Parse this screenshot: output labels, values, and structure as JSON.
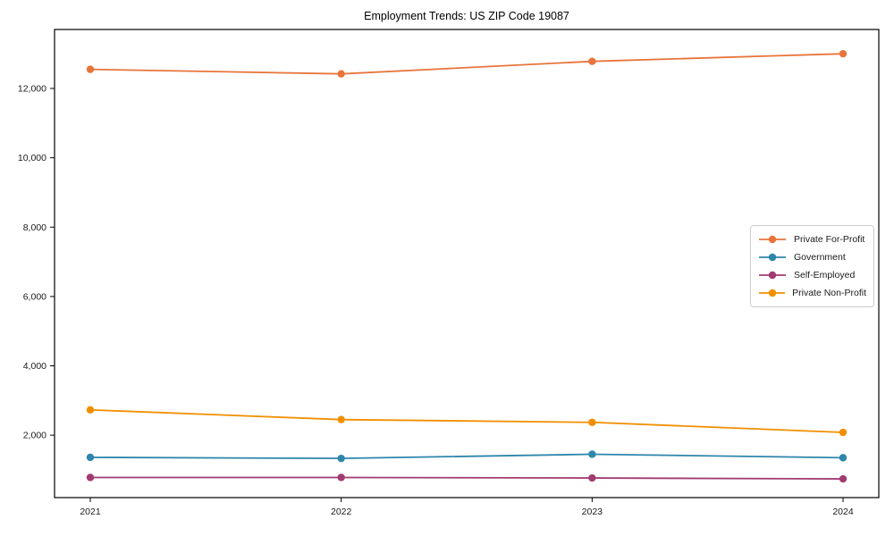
{
  "chart_data": {
    "type": "line",
    "title": "Employment Trends: US ZIP Code 19087",
    "xlabel": "",
    "ylabel": "",
    "categories": [
      "2021",
      "2022",
      "2023",
      "2024"
    ],
    "series": [
      {
        "name": "Private For-Profit",
        "color": "#e8743b",
        "values": [
          12550,
          12420,
          12780,
          13000
        ]
      },
      {
        "name": "Government",
        "color": "#2e86ab",
        "values": [
          1360,
          1330,
          1450,
          1350
        ]
      },
      {
        "name": "Self-Employed",
        "color": "#a23b72",
        "values": [
          780,
          780,
          765,
          740
        ]
      },
      {
        "name": "Private Non-Profit",
        "color": "#f18f01",
        "values": [
          2730,
          2450,
          2370,
          2080
        ]
      }
    ],
    "y_ticks": [
      2000,
      4000,
      6000,
      8000,
      10000,
      12000
    ],
    "y_tick_labels": [
      "2,000",
      "4,000",
      "6,000",
      "8,000",
      "10,000",
      "12,000"
    ],
    "ylim": [
      200,
      13700
    ],
    "grid": false,
    "legend_position": "center-right",
    "frame_color": "#000000",
    "marker": "circle",
    "line_width": 1.8,
    "marker_radius": 4.2
  }
}
